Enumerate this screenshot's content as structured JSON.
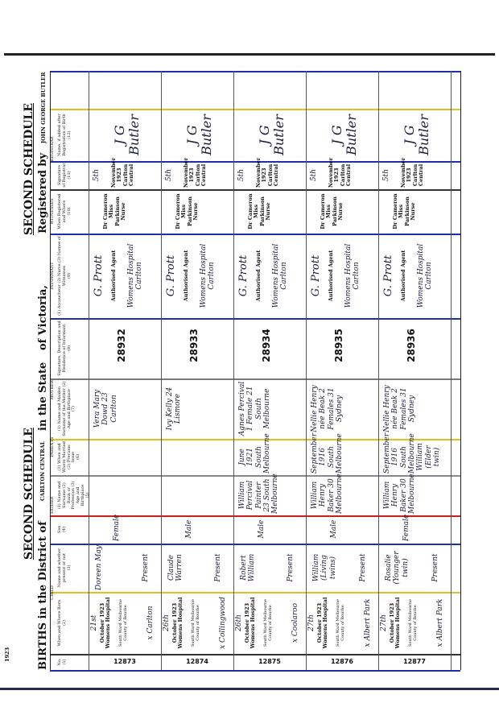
{
  "header": {
    "year": "1923",
    "no_label": "No.",
    "births_in_district": "BIRTHS in the District of",
    "second_schedule_left": "SECOND SCHEDULE",
    "district": "CARLTON CENTRAL",
    "in_the_state": "in the State",
    "of_victoria": "of Victoria,",
    "second_schedule_right": "SECOND SCHEDULE",
    "registered_by": "Registered by",
    "registrar": "JOHN GEORGE BUTLER"
  },
  "column_groups": {
    "child": "CHILD",
    "parents": "PARENTS",
    "father": "FATHER",
    "mother": "MOTHER",
    "informant": "INFORMANT",
    "witnesses": "WITNESSES",
    "registrar": "REGISTRAR"
  },
  "columns": [
    {
      "label": "No.",
      "num": "(1)"
    },
    {
      "label": "When and Where Born",
      "num": "(2)"
    },
    {
      "label": "Name and whether present or not",
      "num": "(3)"
    },
    {
      "label": "Sex",
      "num": "(4)"
    },
    {
      "label": "(1) Name and Surname (2) Rank or Profession (3) Age and Birthplace",
      "num": "(5)"
    },
    {
      "label": "(1) When and Where Married (2) Previous Issue",
      "num": "(6)"
    },
    {
      "label": "(1) Name and Maiden Surname of the Mother (2) Age and Birthplace",
      "num": "(7)"
    },
    {
      "label": "Signature, Description and Residence of Informant",
      "num": "(8)"
    },
    {
      "label": "(1) Accoucheur (2) Nurse (3) Names of Witnesses",
      "num": "(9)"
    },
    {
      "label": "When Registered and Where",
      "num": "(10)"
    },
    {
      "label": "Signature of Registrar",
      "num": "(11)"
    },
    {
      "label": "Name, if added after Registration of Birth",
      "num": "(12)"
    }
  ],
  "entries": [
    {
      "no": "12873",
      "day": "21st",
      "when_where": "October 1923 Womens Hospital",
      "place": "South Ward Melbourne County of Bourke",
      "resident": "x Carlton",
      "name": "Doreen May",
      "present": "Present",
      "sex": "Female",
      "father": "",
      "married": "",
      "mother": "Vera Mary Dowd 23 Carlton",
      "reg_no": "28932",
      "informant_sig": "G. Prott",
      "informant": "Authorised Agent",
      "informant_res": "Womens Hospital Carlton",
      "witnesses": "Dr Cameron Miss Parkinson Nurse",
      "when_registered_day": "5th",
      "when_registered": "November 1923 Carlton Central",
      "registrar_sig": "J G Butler"
    },
    {
      "no": "12874",
      "day": "26th",
      "when_where": "October 1923 Womens Hospital",
      "place": "South Ward Melbourne County of Bourke",
      "resident": "x Collingwood",
      "name": "Claude Warren",
      "present": "Present",
      "sex": "Male",
      "father": "",
      "married": "",
      "mother": "Ivy Kelly 24 Lismore",
      "reg_no": "28933",
      "informant_sig": "G. Prott",
      "informant": "Authorised Agent",
      "informant_res": "Womens Hospital Carlton",
      "witnesses": "Dr Cameron Miss Parkinson Nurse",
      "when_registered_day": "5th",
      "when_registered": "November 1923 Carlton Central",
      "registrar_sig": "J G Butler"
    },
    {
      "no": "12875",
      "day": "26th",
      "when_where": "October 1923 Womens Hospital",
      "place": "South Ward Melbourne County of Bourke",
      "resident": "x Coolaroo",
      "name": "Robert William",
      "present": "Present",
      "sex": "Male",
      "father": "William Percival Painter 23 South Melbourne",
      "married": "June 1921 South Melbourne",
      "mother": "Agnes Percival 1 Female 21 South Melbourne",
      "reg_no": "28934",
      "informant_sig": "G. Prott",
      "informant": "Authorised Agent",
      "informant_res": "Womens Hospital Carlton",
      "witnesses": "Dr Cameron Miss Parkinson Nurse",
      "when_registered_day": "5th",
      "when_registered": "November 1923 Carlton Central",
      "registrar_sig": "J G Butler"
    },
    {
      "no": "12876",
      "day": "27th",
      "when_where": "October 1923 Womens Hospital",
      "place": "South Ward Melbourne County of Bourke",
      "resident": "x Albert Park",
      "name": "William (Living twins)",
      "present": "Present",
      "sex": "Male",
      "father": "William Henry Baker 30 Melbourne",
      "married": "September 1916 South Melbourne",
      "mother": "Nellie Henry née Beak 2 Females 31 Sydney",
      "reg_no": "28935",
      "informant_sig": "G. Prott",
      "informant": "Authorised Agent",
      "informant_res": "Womens Hospital Carlton",
      "witnesses": "Dr Cameron Miss Parkinson Nurse",
      "when_registered_day": "5th",
      "when_registered": "November 1923 Carlton Central",
      "registrar_sig": "J G Butler"
    },
    {
      "no": "12877",
      "day": "27th",
      "when_where": "October 1923 Womens Hospital",
      "place": "South Ward Melbourne County of Bourke",
      "resident": "x Albert Park",
      "name": "Rosalie (Younger twin)",
      "present": "Present",
      "sex": "Female",
      "father": "William Henry Baker 30 Melbourne",
      "married": "September 1916 South Melbourne William (Elder twin)",
      "mother": "Nellie Henry née Beak 2 Females 31 Sydney",
      "reg_no": "28936",
      "informant_sig": "G. Prott",
      "informant": "Authorised Agent",
      "informant_res": "Womens Hospital Carlton",
      "witnesses": "Dr Cameron Miss Parkinson Nurse",
      "when_registered_day": "5th",
      "when_registered": "November 1923 Carlton Central",
      "registrar_sig": "J G Butler"
    }
  ],
  "colors": {
    "ink": "#111111",
    "blue_rule": "#1b2fb0",
    "red_rule": "#c8201a",
    "yellow_rule": "#e0c020",
    "handwriting": "#1a1a3a"
  }
}
